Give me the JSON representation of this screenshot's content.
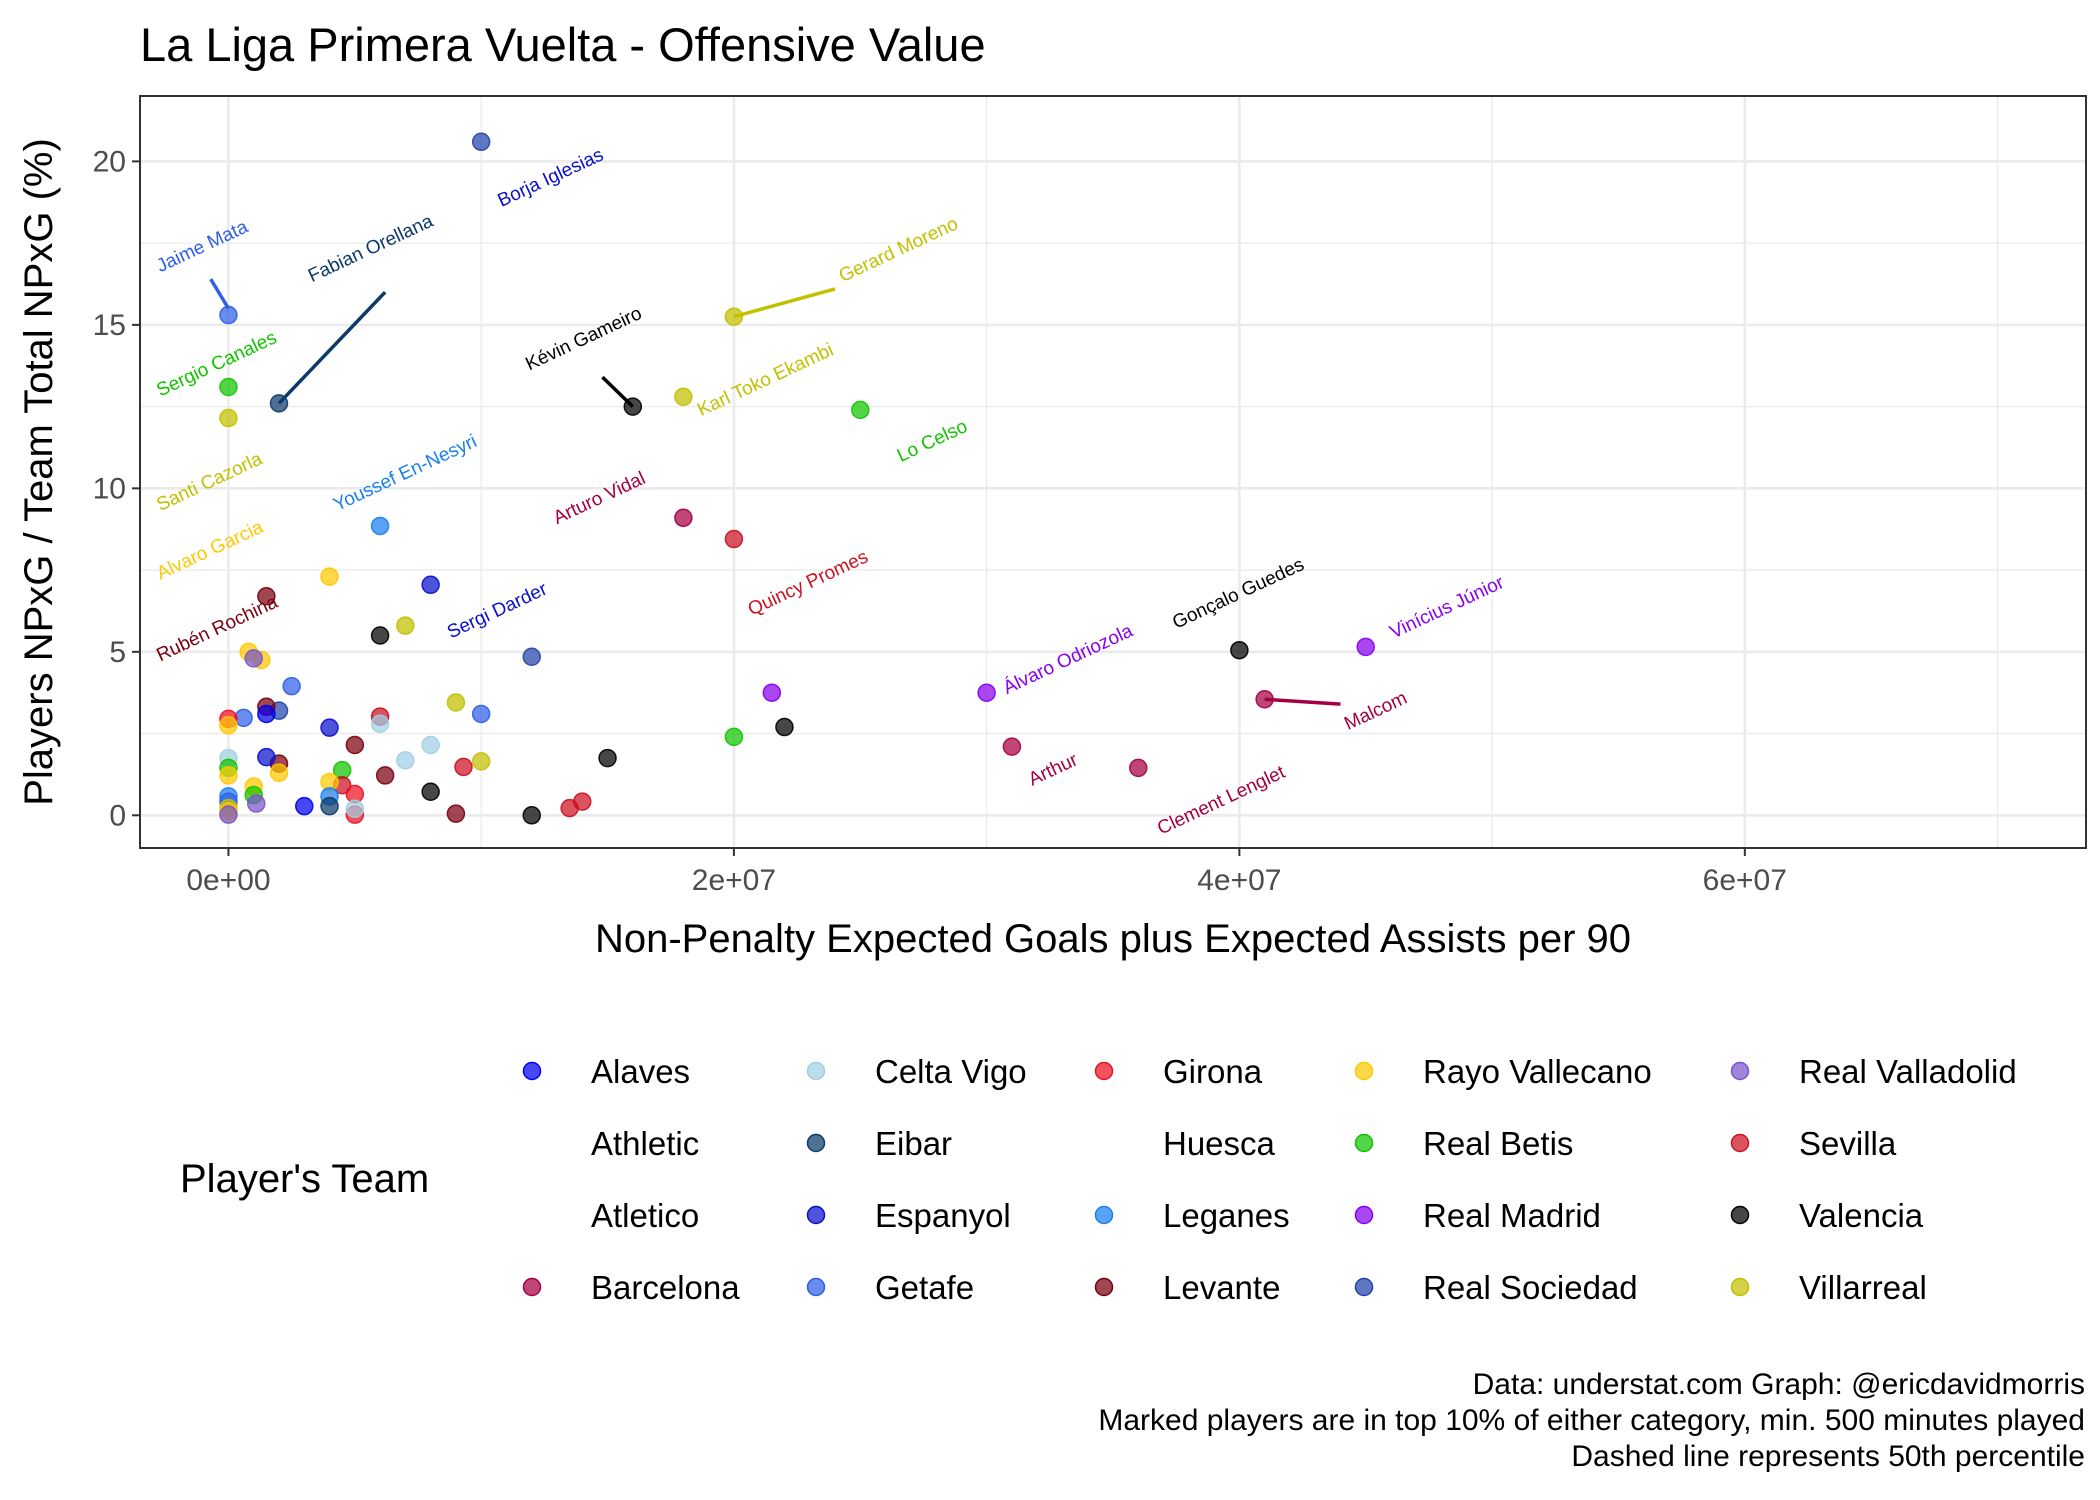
{
  "chart_data": {
    "type": "scatter",
    "title": "La Liga Primera Vuelta - Offensive Value",
    "xlabel": "Non-Penalty Expected Goals plus Expected Assists per 90",
    "ylabel": "Players NPxG / Team Total NPxG (%)",
    "xlim": [
      -3500000,
      73500000
    ],
    "ylim": [
      -1,
      22
    ],
    "x_ticks": [
      0,
      20000000,
      40000000,
      60000000
    ],
    "x_tick_labels": [
      "0e+00",
      "2e+07",
      "4e+07",
      "6e+07"
    ],
    "y_ticks": [
      0,
      5,
      10,
      15,
      20
    ],
    "y_tick_labels": [
      "0",
      "5",
      "10",
      "15",
      "20"
    ],
    "grid": true,
    "legend_title": "Player's Team",
    "legend_placement": "bottom",
    "teams": [
      {
        "name": "Alaves",
        "color": "#0000ee"
      },
      {
        "name": "Athletic",
        "color": null
      },
      {
        "name": "Atletico",
        "color": null
      },
      {
        "name": "Barcelona",
        "color": "#a50044"
      },
      {
        "name": "Celta Vigo",
        "color": "#9fcfe3"
      },
      {
        "name": "Eibar",
        "color": "#0b3a6b"
      },
      {
        "name": "Espanyol",
        "color": "#0a10cc"
      },
      {
        "name": "Getafe",
        "color": "#2f5fe8"
      },
      {
        "name": "Girona",
        "color": "#ee1122"
      },
      {
        "name": "Huesca",
        "color": null
      },
      {
        "name": "Leganes",
        "color": "#1a7ff0"
      },
      {
        "name": "Levante",
        "color": "#7a0010"
      },
      {
        "name": "Rayo Vallecano",
        "color": "#ffc800"
      },
      {
        "name": "Real Betis",
        "color": "#12c400"
      },
      {
        "name": "Real Madrid",
        "color": "#8800ee"
      },
      {
        "name": "Real Sociedad",
        "color": "#2244aa"
      },
      {
        "name": "Real Valladolid",
        "color": "#7a55cc"
      },
      {
        "name": "Sevilla",
        "color": "#cc1122"
      },
      {
        "name": "Valencia",
        "color": "#000000"
      },
      {
        "name": "Villarreal",
        "color": "#c2c000"
      }
    ],
    "points": [
      {
        "team": "Real Sociedad",
        "x": 10000000,
        "y": 20.6
      },
      {
        "team": "Getafe",
        "x": 0,
        "y": 15.3
      },
      {
        "team": "Eibar",
        "x": 2000000,
        "y": 12.6
      },
      {
        "team": "Villarreal",
        "x": 20000000,
        "y": 15.25
      },
      {
        "team": "Valencia",
        "x": 16000000,
        "y": 12.5
      },
      {
        "team": "Villarreal",
        "x": 18000000,
        "y": 12.8
      },
      {
        "team": "Real Betis",
        "x": 25000000,
        "y": 12.4
      },
      {
        "team": "Real Betis",
        "x": 0,
        "y": 13.1
      },
      {
        "team": "Villarreal",
        "x": 0,
        "y": 12.15
      },
      {
        "team": "Leganes",
        "x": 6000000,
        "y": 8.85
      },
      {
        "team": "Barcelona",
        "x": 18000000,
        "y": 9.1
      },
      {
        "team": "Sevilla",
        "x": 20000000,
        "y": 8.45
      },
      {
        "team": "Rayo Vallecano",
        "x": 4000000,
        "y": 7.3
      },
      {
        "team": "Espanyol",
        "x": 8000000,
        "y": 7.05
      },
      {
        "team": "Levante",
        "x": 1500000,
        "y": 6.7
      },
      {
        "team": "Villarreal",
        "x": 7000000,
        "y": 5.8
      },
      {
        "team": "Valencia",
        "x": 6000000,
        "y": 5.5
      },
      {
        "team": "Real Sociedad",
        "x": 12000000,
        "y": 4.85
      },
      {
        "team": "Real Madrid",
        "x": 30000000,
        "y": 3.75
      },
      {
        "team": "Valencia",
        "x": 40000000,
        "y": 5.05
      },
      {
        "team": "Real Madrid",
        "x": 45000000,
        "y": 5.15
      },
      {
        "team": "Barcelona",
        "x": 41000000,
        "y": 3.55
      },
      {
        "team": "Barcelona",
        "x": 31000000,
        "y": 2.1
      },
      {
        "team": "Barcelona",
        "x": 36000000,
        "y": 1.45
      },
      {
        "team": "Real Madrid",
        "x": 21500000,
        "y": 3.75
      },
      {
        "team": "Valencia",
        "x": 22000000,
        "y": 2.7
      },
      {
        "team": "Real Betis",
        "x": 20000000,
        "y": 2.4
      },
      {
        "team": "Valencia",
        "x": 15000000,
        "y": 1.75
      },
      {
        "team": "Sevilla",
        "x": 14000000,
        "y": 0.42
      },
      {
        "team": "Sevilla",
        "x": 13500000,
        "y": 0.22
      },
      {
        "team": "Valencia",
        "x": 12000000,
        "y": 0.0
      },
      {
        "team": "Levante",
        "x": 9000000,
        "y": 0.05
      },
      {
        "team": "Valencia",
        "x": 8000000,
        "y": 0.72
      },
      {
        "team": "Sevilla",
        "x": 9300000,
        "y": 1.48
      },
      {
        "team": "Villarreal",
        "x": 10000000,
        "y": 1.65
      },
      {
        "team": "Villarreal",
        "x": 9000000,
        "y": 3.45
      },
      {
        "team": "Getafe",
        "x": 10000000,
        "y": 3.1
      },
      {
        "team": "Celta Vigo",
        "x": 8000000,
        "y": 2.15
      },
      {
        "team": "Celta Vigo",
        "x": 7000000,
        "y": 1.68
      },
      {
        "team": "Levante",
        "x": 6200000,
        "y": 1.22
      },
      {
        "team": "Sevilla",
        "x": 6000000,
        "y": 3.02
      },
      {
        "team": "Celta Vigo",
        "x": 6000000,
        "y": 2.8
      },
      {
        "team": "Levante",
        "x": 5000000,
        "y": 2.15
      },
      {
        "team": "Real Betis",
        "x": 4500000,
        "y": 1.38
      },
      {
        "team": "Sevilla",
        "x": 4500000,
        "y": 0.92
      },
      {
        "team": "Rayo Vallecano",
        "x": 4000000,
        "y": 1.02
      },
      {
        "team": "Girona",
        "x": 5000000,
        "y": 0.65
      },
      {
        "team": "Girona",
        "x": 5000000,
        "y": 0.02
      },
      {
        "team": "Celta Vigo",
        "x": 5000000,
        "y": 0.2
      },
      {
        "team": "Leganes",
        "x": 4000000,
        "y": 0.58
      },
      {
        "team": "Eibar",
        "x": 4000000,
        "y": 0.28
      },
      {
        "team": "Espanyol",
        "x": 4000000,
        "y": 2.68
      },
      {
        "team": "Alaves",
        "x": 3000000,
        "y": 0.28
      },
      {
        "team": "Getafe",
        "x": 2500000,
        "y": 3.95
      },
      {
        "team": "Real Sociedad",
        "x": 2000000,
        "y": 3.2
      },
      {
        "team": "Levante",
        "x": 2000000,
        "y": 1.58
      },
      {
        "team": "Rayo Vallecano",
        "x": 2000000,
        "y": 1.3
      },
      {
        "team": "Espanyol",
        "x": 1500000,
        "y": 1.78
      },
      {
        "team": "Levante",
        "x": 1500000,
        "y": 3.32
      },
      {
        "team": "Alaves",
        "x": 1500000,
        "y": 3.1
      },
      {
        "team": "Rayo Vallecano",
        "x": 800000,
        "y": 5.0
      },
      {
        "team": "Rayo Vallecano",
        "x": 1300000,
        "y": 4.75
      },
      {
        "team": "Real Valladolid",
        "x": 1000000,
        "y": 4.8
      },
      {
        "team": "Getafe",
        "x": 600000,
        "y": 2.98
      },
      {
        "team": "Rayo Vallecano",
        "x": 1000000,
        "y": 0.88
      },
      {
        "team": "Real Betis",
        "x": 1000000,
        "y": 0.62
      },
      {
        "team": "Real Valladolid",
        "x": 1100000,
        "y": 0.36
      },
      {
        "team": "Girona",
        "x": 0,
        "y": 2.95
      },
      {
        "team": "Rayo Vallecano",
        "x": 0,
        "y": 2.75
      },
      {
        "team": "Celta Vigo",
        "x": 0,
        "y": 1.75
      },
      {
        "team": "Real Betis",
        "x": 0,
        "y": 1.45
      },
      {
        "team": "Rayo Vallecano",
        "x": 0,
        "y": 1.22
      },
      {
        "team": "Leganes",
        "x": 0,
        "y": 0.58
      },
      {
        "team": "Getafe",
        "x": 0,
        "y": 0.42
      },
      {
        "team": "Villarreal",
        "x": 0,
        "y": 0.22
      },
      {
        "team": "Rayo Vallecano",
        "x": 0,
        "y": 0.12
      },
      {
        "team": "Real Valladolid",
        "x": 0,
        "y": 0.02
      }
    ],
    "annotations": [
      {
        "text": "Borja Iglesias",
        "team": "Espanyol",
        "x": 10800000,
        "y": 18.6
      },
      {
        "text": "Jaime Mata",
        "team": "Getafe",
        "x": -2700000,
        "y": 16.6,
        "seg": [
          0,
          15.5,
          -700000,
          16.4
        ]
      },
      {
        "text": "Fabian Orellana",
        "team": "Eibar",
        "x": 3300000,
        "y": 16.3,
        "seg": [
          2000000,
          12.6,
          6200000,
          16.0
        ]
      },
      {
        "text": "Gerard Moreno",
        "team": "Villarreal",
        "x": 24300000,
        "y": 16.3,
        "seg": [
          20000000,
          15.25,
          24000000,
          16.1
        ]
      },
      {
        "text": "Sergio Canales",
        "team": "Real Betis",
        "x": -2700000,
        "y": 12.8
      },
      {
        "text": "Kévin Gameiro",
        "team": "Valencia",
        "x": 11900000,
        "y": 13.6,
        "seg": [
          16000000,
          12.5,
          14800000,
          13.4
        ]
      },
      {
        "text": "Karl Toko Ekambi",
        "team": "Villarreal",
        "x": 18700000,
        "y": 12.2
      },
      {
        "text": "Lo Celso",
        "team": "Real Betis",
        "x": 26600000,
        "y": 10.8
      },
      {
        "text": "Santi Cazorla",
        "team": "Villarreal",
        "x": -2700000,
        "y": 9.3
      },
      {
        "text": "Youssef En-Nesyri",
        "team": "Leganes",
        "x": 4300000,
        "y": 9.3
      },
      {
        "text": "Arturo Vidal",
        "team": "Barcelona",
        "x": 13000000,
        "y": 8.9
      },
      {
        "text": "Alvaro Garcia",
        "team": "Rayo Vallecano",
        "x": -2700000,
        "y": 7.2
      },
      {
        "text": "Quincy Promes",
        "team": "Sevilla",
        "x": 20700000,
        "y": 6.1
      },
      {
        "text": "Rubén Rochina",
        "team": "Levante",
        "x": -2700000,
        "y": 4.7
      },
      {
        "text": "Sergi Darder",
        "team": "Espanyol",
        "x": 8800000,
        "y": 5.4
      },
      {
        "text": "Gonçalo Guedes",
        "team": "Valencia",
        "x": 37500000,
        "y": 5.7
      },
      {
        "text": "Vinícius Júnior",
        "team": "Real Madrid",
        "x": 46100000,
        "y": 5.4
      },
      {
        "text": "Álvaro Odriozola",
        "team": "Real Madrid",
        "x": 30800000,
        "y": 3.7
      },
      {
        "text": "Malcom",
        "team": "Barcelona",
        "x": 44300000,
        "y": 2.6,
        "seg": [
          41000000,
          3.55,
          44000000,
          3.4
        ]
      },
      {
        "text": "Arthur",
        "team": "Barcelona",
        "x": 31800000,
        "y": 0.9
      },
      {
        "text": "Clement Lenglet",
        "team": "Barcelona",
        "x": 36900000,
        "y": -0.6
      }
    ]
  },
  "caption": [
    "Data: understat.com Graph: @ericdavidmorris",
    "Marked players are in top 10% of either category, min. 500 minutes played",
    "Dashed line represents 50th percentile"
  ]
}
